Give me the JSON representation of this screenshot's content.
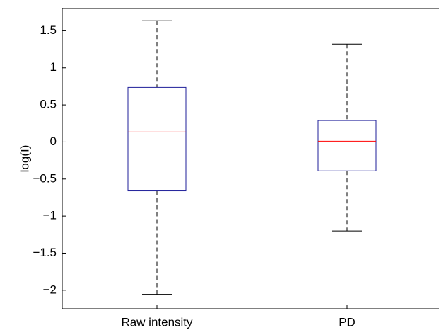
{
  "chart_data": {
    "type": "box",
    "ylabel": "log(I)",
    "categories": [
      "Raw intensity",
      "PD"
    ],
    "boxes": [
      {
        "low": -2.055,
        "q1": -0.66,
        "median": 0.134,
        "q3": 0.736,
        "high": 1.635
      },
      {
        "low": -1.2,
        "q1": -0.39,
        "median": 0.01,
        "q3": 0.29,
        "high": 1.32
      }
    ],
    "box_color": "#1f1f9a",
    "median_color": "#ff0000",
    "whisker_color": "#000000",
    "ylim": [
      -2.25,
      1.8
    ],
    "yticks": [
      {
        "value": -2,
        "label": "−2"
      },
      {
        "value": -1.5,
        "label": "−1.5"
      },
      {
        "value": -1,
        "label": "−1"
      },
      {
        "value": -0.5,
        "label": "−0.5"
      },
      0,
      0.5,
      1,
      1.5
    ]
  }
}
